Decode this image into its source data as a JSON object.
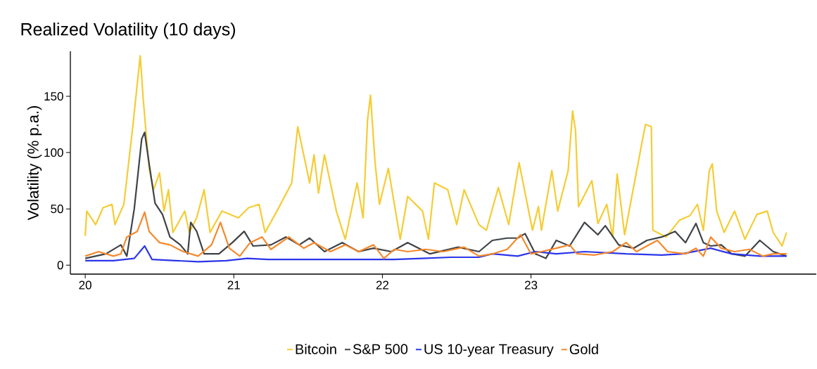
{
  "chart_data": {
    "type": "line",
    "title": "Realized Volatility (10 days)",
    "ylabel": "Volatility (% p.a.)",
    "xlim": [
      19.9,
      24.92
    ],
    "xticks": [
      20,
      21,
      22,
      23
    ],
    "ylim": [
      -8,
      190
    ],
    "yticks": [
      0,
      50,
      100,
      150
    ],
    "legend": "bottom",
    "series": [
      {
        "name": "Bitcoin",
        "color": "#f5cc35",
        "x": [
          20.0,
          20.01,
          20.07,
          20.12,
          20.18,
          20.2,
          20.26,
          20.32,
          20.37,
          20.39,
          20.43,
          20.46,
          20.5,
          20.53,
          20.56,
          20.59,
          20.67,
          20.7,
          20.75,
          20.8,
          20.84,
          20.92,
          21.03,
          21.1,
          21.17,
          21.21,
          21.29,
          21.39,
          21.43,
          21.48,
          21.51,
          21.54,
          21.57,
          21.61,
          21.69,
          21.75,
          21.83,
          21.87,
          21.9,
          21.92,
          21.95,
          21.98,
          22.04,
          22.12,
          22.17,
          22.27,
          22.31,
          22.35,
          22.44,
          22.5,
          22.55,
          22.65,
          22.7,
          22.78,
          22.85,
          22.92,
          23.01,
          23.05,
          23.07,
          23.14,
          23.18,
          23.25,
          23.28,
          23.3,
          23.32,
          23.41,
          23.45,
          23.51,
          23.55,
          23.58,
          23.63,
          23.77,
          23.81,
          23.82,
          23.91,
          24.0,
          24.07,
          24.12,
          24.16,
          24.2,
          24.22,
          24.25,
          24.3,
          24.37,
          24.44,
          24.52,
          24.59,
          24.63,
          24.69,
          24.72
        ],
        "values": [
          26,
          48,
          36,
          51,
          54,
          36,
          54,
          123,
          186,
          148,
          86,
          67,
          82,
          48,
          67,
          29,
          48,
          29,
          42,
          67,
          29,
          48,
          42,
          51,
          54,
          29,
          48,
          73,
          123,
          92,
          73,
          98,
          64,
          98,
          48,
          23,
          73,
          42,
          129,
          151,
          92,
          54,
          86,
          23,
          61,
          48,
          23,
          73,
          67,
          36,
          67,
          36,
          31,
          69,
          36,
          91,
          31,
          52,
          31,
          84,
          48,
          84,
          137,
          119,
          52,
          75,
          37,
          54,
          25,
          81,
          27,
          125,
          123,
          31,
          25,
          40,
          44,
          54,
          31,
          84,
          90,
          48,
          29,
          48,
          23,
          45,
          48,
          29,
          17,
          29
        ]
      },
      {
        "name": "S&P 500",
        "color": "#3f4347",
        "x": [
          20.0,
          20.14,
          20.24,
          20.28,
          20.33,
          20.38,
          20.4,
          20.43,
          20.47,
          20.52,
          20.57,
          20.64,
          20.69,
          20.71,
          20.75,
          20.8,
          20.9,
          20.99,
          21.07,
          21.13,
          21.25,
          21.35,
          21.44,
          21.51,
          21.61,
          21.73,
          21.84,
          21.94,
          22.06,
          22.17,
          22.32,
          22.51,
          22.65,
          22.74,
          22.84,
          22.91,
          22.96,
          23.03,
          23.1,
          23.17,
          23.26,
          23.36,
          23.45,
          23.5,
          23.59,
          23.69,
          23.78,
          23.88,
          23.97,
          24.04,
          24.11,
          24.16,
          24.21,
          24.28,
          24.35,
          24.44,
          24.54,
          24.63,
          24.72
        ],
        "values": [
          6,
          10,
          18,
          8,
          50,
          112,
          118,
          90,
          55,
          45,
          25,
          18,
          10,
          38,
          30,
          10,
          10,
          20,
          30,
          17,
          18,
          25,
          18,
          24,
          12,
          20,
          12,
          15,
          12,
          20,
          10,
          16,
          12,
          22,
          24,
          24,
          28,
          10,
          6,
          22,
          17,
          38,
          27,
          35,
          18,
          15,
          22,
          25,
          30,
          20,
          37,
          20,
          17,
          18,
          10,
          8,
          22,
          12,
          8
        ]
      },
      {
        "name": "US 10-year Treasury",
        "color": "#2b35e8",
        "x": [
          20.0,
          20.19,
          20.33,
          20.4,
          20.45,
          20.61,
          20.76,
          20.95,
          21.09,
          21.23,
          21.42,
          21.61,
          21.89,
          22.08,
          22.27,
          22.46,
          22.65,
          22.74,
          22.91,
          23.03,
          23.17,
          23.36,
          23.64,
          23.88,
          24.02,
          24.21,
          24.35,
          24.54,
          24.72
        ],
        "values": [
          4,
          4,
          6,
          17,
          5,
          4,
          3,
          4,
          6,
          5,
          5,
          5,
          5,
          5,
          6,
          7,
          7,
          10,
          8,
          12,
          10,
          12,
          10,
          9,
          10,
          15,
          10,
          8,
          8
        ]
      },
      {
        "name": "Gold",
        "color": "#f5892c",
        "x": [
          20.0,
          20.09,
          20.19,
          20.24,
          20.28,
          20.35,
          20.4,
          20.43,
          20.5,
          20.57,
          20.66,
          20.76,
          20.85,
          20.91,
          20.97,
          21.04,
          21.11,
          21.19,
          21.25,
          21.37,
          21.47,
          21.54,
          21.65,
          21.75,
          21.84,
          21.94,
          22.01,
          22.08,
          22.17,
          22.29,
          22.41,
          22.55,
          22.65,
          22.74,
          22.84,
          22.93,
          23.0,
          23.07,
          23.17,
          23.26,
          23.31,
          23.43,
          23.55,
          23.64,
          23.71,
          23.78,
          23.85,
          23.92,
          24.04,
          24.11,
          24.16,
          24.21,
          24.28,
          24.37,
          24.47,
          24.56,
          24.63,
          24.72
        ],
        "values": [
          8,
          12,
          8,
          10,
          25,
          30,
          47,
          30,
          20,
          18,
          12,
          8,
          18,
          38,
          15,
          8,
          20,
          25,
          14,
          25,
          15,
          20,
          12,
          18,
          12,
          18,
          6,
          14,
          12,
          14,
          12,
          16,
          8,
          10,
          14,
          27,
          10,
          12,
          15,
          18,
          10,
          9,
          12,
          20,
          12,
          17,
          22,
          12,
          10,
          15,
          8,
          25,
          15,
          12,
          14,
          8,
          10,
          10
        ]
      }
    ]
  }
}
